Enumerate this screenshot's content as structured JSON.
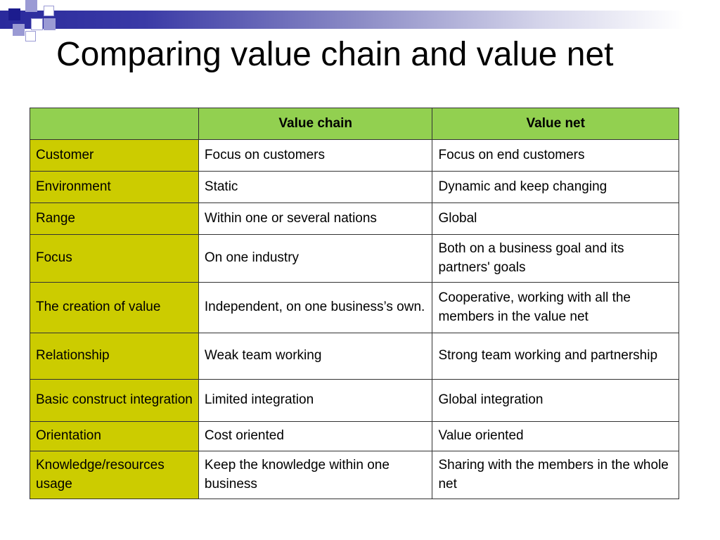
{
  "slide": {
    "title": "Comparing value chain and value net"
  },
  "table": {
    "headers": [
      "",
      "Value chain",
      "Value net"
    ],
    "rows": [
      {
        "label": "Customer",
        "chain": "Focus on customers",
        "net": "Focus on end customers"
      },
      {
        "label": "Environment",
        "chain": "Static",
        "net": "Dynamic and keep changing"
      },
      {
        "label": "Range",
        "chain": "Within one or several nations",
        "net": "Global"
      },
      {
        "label": "Focus",
        "chain": "On one industry",
        "net": "Both on a business goal and its partners' goals"
      },
      {
        "label": "The creation of value",
        "chain": "Independent, on one business’s own.",
        "net": "Cooperative, working with all the members in the value net"
      },
      {
        "label": "Relationship",
        "chain": "Weak team working",
        "net": "Strong team working and partnership"
      },
      {
        "label": "Basic construct integration",
        "chain": "Limited integration",
        "net": "Global integration"
      },
      {
        "label": "Orientation",
        "chain": "Cost oriented",
        "net": "Value oriented"
      },
      {
        "label": "Knowledge/resources usage",
        "chain": "Keep the knowledge within one business",
        "net": "Sharing with the members in the whole net"
      }
    ]
  },
  "colors": {
    "header_fill": "#92d050",
    "row_label_fill": "#cccc00",
    "accent_blue": "#1c1c8e"
  }
}
